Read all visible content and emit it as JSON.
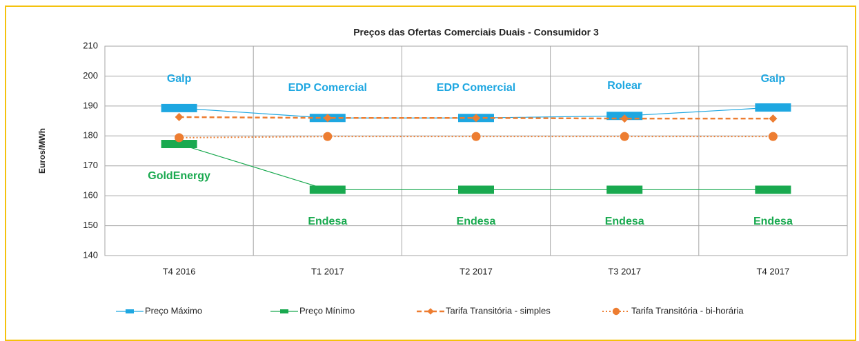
{
  "chart_data": {
    "type": "line",
    "title": "Preços das Ofertas Comerciais Duais - Consumidor 3",
    "y_label": "Euros/MWh",
    "categories": [
      "T4 2016",
      "T1 2017",
      "T2 2017",
      "T3 2017",
      "T4 2017"
    ],
    "ylim": [
      140,
      210
    ],
    "yticks": [
      140,
      150,
      160,
      170,
      180,
      190,
      200,
      210
    ],
    "grid": true,
    "legend": "bottom",
    "series": [
      {
        "name": "Preço Máximo",
        "color": "#1ea7e1",
        "marker": "bar",
        "line": "solid",
        "values": [
          189.3,
          186,
          186,
          186.7,
          189.5
        ]
      },
      {
        "name": "Preço Mínimo",
        "color": "#19a94f",
        "marker": "bar",
        "line": "solid",
        "values": [
          177.3,
          162,
          162,
          162,
          162
        ]
      },
      {
        "name": "Tarifa Transitória - simples",
        "color": "#ed7d31",
        "marker": "diamond",
        "line": "dashed",
        "values": [
          186.3,
          186,
          186,
          185.8,
          185.8
        ]
      },
      {
        "name": "Tarifa Transitória - bi-horária",
        "color": "#ed7d31",
        "marker": "circle",
        "line": "dotted",
        "values": [
          179.4,
          179.8,
          179.8,
          179.8,
          179.8
        ]
      }
    ],
    "annotations": [
      {
        "text": "Galp",
        "color": "#1ea7e1"
      },
      {
        "text": "EDP Comercial",
        "color": "#1ea7e1"
      },
      {
        "text": "EDP Comercial",
        "color": "#1ea7e1"
      },
      {
        "text": "Rolear",
        "color": "#1ea7e1"
      },
      {
        "text": "Galp",
        "color": "#1ea7e1"
      },
      {
        "text": "GoldEnergy",
        "color": "#19a94f"
      },
      {
        "text": "Endesa",
        "color": "#19a94f"
      },
      {
        "text": "Endesa",
        "color": "#19a94f"
      },
      {
        "text": "Endesa",
        "color": "#19a94f"
      },
      {
        "text": "Endesa",
        "color": "#19a94f"
      }
    ]
  }
}
